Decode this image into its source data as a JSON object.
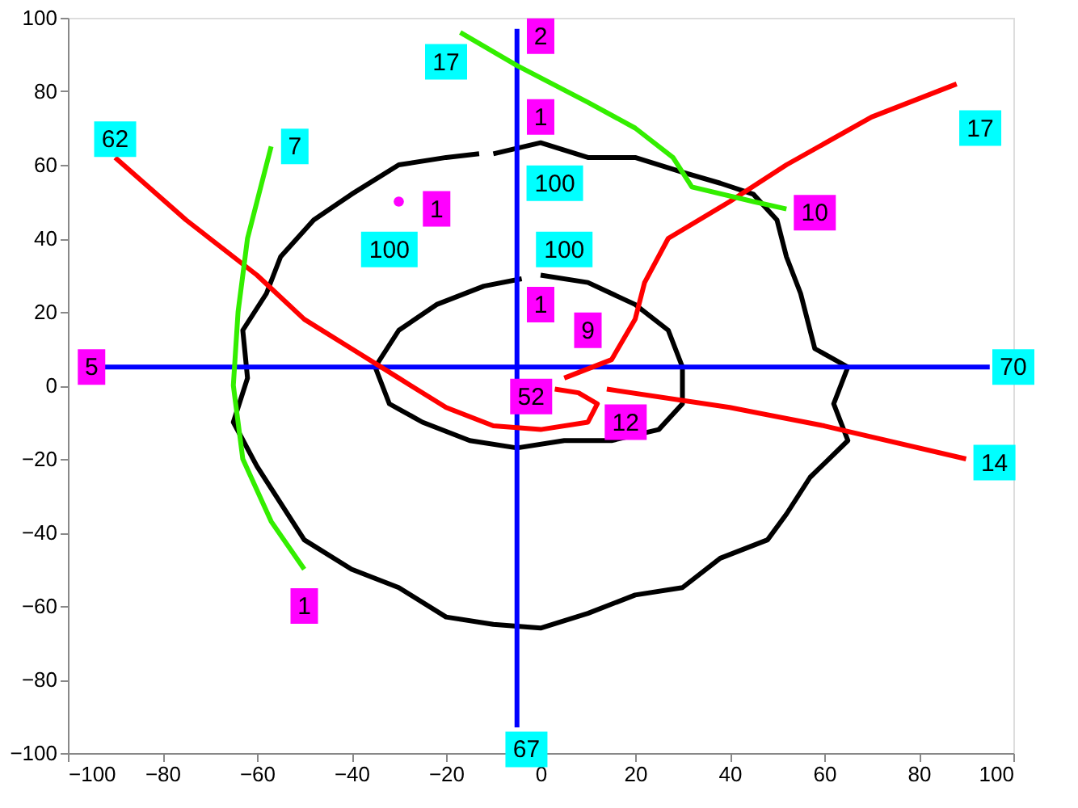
{
  "chart_data": {
    "type": "line",
    "xlim": [
      -100,
      100
    ],
    "ylim": [
      -100,
      100
    ],
    "xticks": [
      -100,
      -80,
      -60,
      -40,
      -20,
      0,
      20,
      40,
      60,
      80,
      100
    ],
    "yticks": [
      -100,
      -80,
      -60,
      -40,
      -20,
      0,
      20,
      40,
      60,
      80,
      100
    ],
    "grid": false,
    "marker": "none",
    "line_style": "solid",
    "series": [
      {
        "color": "#000000",
        "x": [
          -10,
          0,
          10,
          20,
          30,
          38,
          45,
          50,
          52,
          55,
          58,
          65,
          62,
          65,
          57,
          52,
          48,
          38,
          30,
          20,
          10,
          0,
          -10,
          -20,
          -30,
          -40,
          -50,
          -55,
          -60,
          -65,
          -62,
          -63,
          -58,
          -55,
          -48,
          -40,
          -30,
          -20,
          -13
        ],
        "values": [
          63,
          66,
          62,
          62,
          58,
          55,
          52,
          45,
          35,
          25,
          10,
          5,
          -5,
          -15,
          -25,
          -35,
          -42,
          -47,
          -55,
          -57,
          -62,
          -66,
          -65,
          -63,
          -55,
          -50,
          -42,
          -32,
          -22,
          -10,
          2,
          15,
          25,
          35,
          45,
          52,
          60,
          62,
          63
        ]
      },
      {
        "color": "#000000",
        "x": [
          0,
          10,
          20,
          27,
          30,
          30,
          25,
          15,
          5,
          -5,
          -15,
          -25,
          -32,
          -35,
          -30,
          -22,
          -12,
          -4
        ],
        "values": [
          30,
          28,
          22,
          15,
          5,
          -5,
          -12,
          -15,
          -15,
          -17,
          -15,
          -10,
          -5,
          5,
          15,
          22,
          27,
          29
        ]
      },
      {
        "color": "#0000ff",
        "x": [
          -93,
          95
        ],
        "values": [
          5,
          5
        ]
      },
      {
        "color": "#0000ff",
        "x": [
          -5,
          -5
        ],
        "values": [
          97,
          -93
        ]
      },
      {
        "color": "#ff0000",
        "x": [
          -90,
          -75,
          -60,
          -50,
          -40,
          -30,
          -20,
          -10,
          0,
          10,
          12,
          8,
          3
        ],
        "values": [
          62,
          45,
          30,
          18,
          10,
          2,
          -6,
          -11,
          -12,
          -10,
          -5,
          -2,
          -1
        ]
      },
      {
        "color": "#ff0000",
        "x": [
          5,
          15,
          20,
          22,
          27,
          40,
          52,
          70,
          88
        ],
        "values": [
          2,
          7,
          18,
          28,
          40,
          50,
          60,
          73,
          82
        ]
      },
      {
        "color": "#ff0000",
        "x": [
          14,
          40,
          60,
          90
        ],
        "values": [
          -1,
          -6,
          -11,
          -20
        ]
      },
      {
        "color": "#33ee00",
        "x": [
          -57,
          -60,
          -62,
          -64,
          -65,
          -64,
          -63,
          -57,
          -50
        ],
        "values": [
          65,
          50,
          40,
          20,
          0,
          -10,
          -20,
          -37,
          -50
        ]
      },
      {
        "color": "#33ee00",
        "x": [
          -17,
          -5,
          10,
          20,
          28,
          32,
          45,
          52
        ],
        "values": [
          96,
          87,
          77,
          70,
          62,
          54,
          50,
          48
        ]
      },
      {
        "type": "scatter",
        "marker": "circle",
        "color": "#ff00ff",
        "x": [
          -30
        ],
        "values": [
          50
        ]
      }
    ],
    "annotations": [
      {
        "text": "5",
        "x": -95,
        "y": 5
      },
      {
        "text": "70",
        "x": 100,
        "y": 5
      },
      {
        "text": "2",
        "x": 0,
        "y": 95
      },
      {
        "text": "67",
        "x": -3,
        "y": -99
      },
      {
        "text": "62",
        "x": -90,
        "y": 67
      },
      {
        "text": "17",
        "x": 93,
        "y": 70
      },
      {
        "text": "10",
        "x": 58,
        "y": 47
      },
      {
        "text": "14",
        "x": 96,
        "y": -21
      },
      {
        "text": "12",
        "x": 18,
        "y": -10
      },
      {
        "text": "52",
        "x": -2,
        "y": -3
      },
      {
        "text": "7",
        "x": -52,
        "y": 65
      },
      {
        "text": "1",
        "x": -50,
        "y": -60
      },
      {
        "text": "17",
        "x": -20,
        "y": 88
      },
      {
        "text": "1",
        "x": -22,
        "y": 48
      },
      {
        "text": "100",
        "x": -32,
        "y": 37
      },
      {
        "text": "1",
        "x": 0,
        "y": 73
      },
      {
        "text": "100",
        "x": 3,
        "y": 55
      },
      {
        "text": "100",
        "x": 5,
        "y": 37
      },
      {
        "text": "1",
        "x": 0,
        "y": 22
      },
      {
        "text": "9",
        "x": 10,
        "y": 15
      }
    ]
  }
}
